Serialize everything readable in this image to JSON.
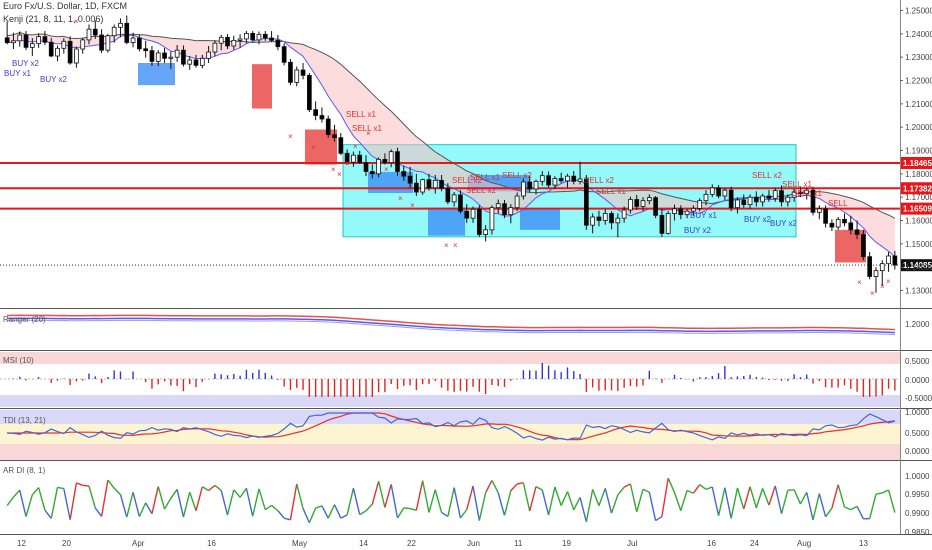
{
  "header": {
    "line1": "Euro Fx/U.S. Dollar, 1D, FXCM",
    "line2": "Kenji (21, 8, 11, 1, 0.006)"
  },
  "colors": {
    "bull": "#ffffff",
    "bear": "#000000",
    "ma": "#555555",
    "ma_fast": "#5a5aff",
    "hline": "#e8161a",
    "buy": "#3c3cd0",
    "sell": "#e03030",
    "range_box": "#6ff7f7",
    "blue_zone": "#3d8ff5",
    "red_zone": "#e84040",
    "band_fill": "#f9c0c0",
    "msi_pos": "#3434d8",
    "msi_neg": "#e82020",
    "tdi_line": "#4466dd",
    "tdi_red": "#e83030",
    "ardi_line": "#30aa30"
  },
  "chart_data": [
    {
      "type": "candlestick",
      "title": "Euro Fx/U.S. Dollar, 1D, FXCM",
      "y_ticks": [
        "1.25000",
        "1.24000",
        "1.23000",
        "1.22000",
        "1.21000",
        "1.20000",
        "1.19000",
        "1.18000",
        "1.17000",
        "1.16000",
        "1.15000",
        "1.14000",
        "1.13000"
      ],
      "ylim": [
        1.1225,
        1.2545
      ],
      "x_labels": [
        "12",
        "20",
        "Apr",
        "16",
        "May",
        "14",
        "22",
        "Jun",
        "11",
        "19",
        "Jul",
        "16",
        "24",
        "Aug",
        "13"
      ],
      "horizontal_lines": [
        {
          "value": 1.18465,
          "label": "1.18465"
        },
        {
          "value": 1.17382,
          "label": "1.17382"
        },
        {
          "value": 1.16509,
          "label": "1.16509"
        }
      ],
      "last_price": {
        "value": 1.14085,
        "label": "1.14085"
      },
      "signals": [
        {
          "text": "BUY x1",
          "kind": "buy"
        },
        {
          "text": "BUY x2",
          "kind": "buy"
        },
        {
          "text": "BUY x2",
          "kind": "buy"
        },
        {
          "text": "SELL x1",
          "kind": "sell"
        },
        {
          "text": "SELL x1",
          "kind": "sell"
        },
        {
          "text": "SELL x2",
          "kind": "sell"
        },
        {
          "text": "SELL x2",
          "kind": "sell"
        },
        {
          "text": "SELL x1",
          "kind": "sell"
        },
        {
          "text": "SELL x2",
          "kind": "sell"
        },
        {
          "text": "SELL x2",
          "kind": "sell"
        },
        {
          "text": "SELL x1",
          "kind": "sell"
        },
        {
          "text": "BUY x1",
          "kind": "buy"
        },
        {
          "text": "BUY x2",
          "kind": "buy"
        },
        {
          "text": "BUY x2",
          "kind": "buy"
        },
        {
          "text": "BUY x2",
          "kind": "buy"
        },
        {
          "text": "SELL x2",
          "kind": "sell"
        },
        {
          "text": "SELL x1",
          "kind": "sell"
        },
        {
          "text": "SELL x1",
          "kind": "sell"
        },
        {
          "text": "SELL",
          "kind": "sell"
        }
      ],
      "candles": [
        [
          1.2383,
          1.2452,
          1.2355,
          1.2362
        ],
        [
          1.2362,
          1.2405,
          1.2335,
          1.237
        ],
        [
          1.237,
          1.241,
          1.2345,
          1.2395
        ],
        [
          1.2395,
          1.2412,
          1.233,
          1.2342
        ],
        [
          1.2342,
          1.2382,
          1.2305,
          1.2358
        ],
        [
          1.2358,
          1.2402,
          1.234,
          1.2388
        ],
        [
          1.2388,
          1.2412,
          1.2352,
          1.2364
        ],
        [
          1.2364,
          1.2382,
          1.23,
          1.2305
        ],
        [
          1.2305,
          1.235,
          1.2283,
          1.2338
        ],
        [
          1.2338,
          1.2382,
          1.2315,
          1.2368
        ],
        [
          1.2368,
          1.239,
          1.2268,
          1.2275
        ],
        [
          1.2275,
          1.2345,
          1.2255,
          1.2335
        ],
        [
          1.2335,
          1.2383,
          1.2315,
          1.2374
        ],
        [
          1.2374,
          1.244,
          1.2355,
          1.242
        ],
        [
          1.242,
          1.2458,
          1.2378,
          1.2395
        ],
        [
          1.2395,
          1.242,
          1.2318,
          1.233
        ],
        [
          1.233,
          1.24,
          1.232,
          1.2392
        ],
        [
          1.2392,
          1.244,
          1.2362,
          1.2428
        ],
        [
          1.2428,
          1.2466,
          1.2385,
          1.2445
        ],
        [
          1.2445,
          1.2478,
          1.2355,
          1.2363
        ],
        [
          1.2363,
          1.2405,
          1.2342,
          1.2382
        ],
        [
          1.2382,
          1.2396,
          1.2325,
          1.2336
        ],
        [
          1.2336,
          1.237,
          1.2298,
          1.2328
        ],
        [
          1.2328,
          1.2348,
          1.2262,
          1.2282
        ],
        [
          1.2282,
          1.233,
          1.2262,
          1.2318
        ],
        [
          1.2318,
          1.234,
          1.2275,
          1.2295
        ],
        [
          1.2295,
          1.2325,
          1.225,
          1.23
        ],
        [
          1.23,
          1.2352,
          1.228,
          1.233
        ],
        [
          1.233,
          1.235,
          1.226,
          1.227
        ],
        [
          1.227,
          1.2305,
          1.2246,
          1.2288
        ],
        [
          1.2288,
          1.231,
          1.2255,
          1.2265
        ],
        [
          1.2265,
          1.231,
          1.2252,
          1.2295
        ],
        [
          1.2295,
          1.2348,
          1.2275,
          1.2322
        ],
        [
          1.2322,
          1.2372,
          1.2305,
          1.236
        ],
        [
          1.236,
          1.2396,
          1.233,
          1.2385
        ],
        [
          1.2385,
          1.2398,
          1.2335,
          1.2348
        ],
        [
          1.2348,
          1.2392,
          1.2332,
          1.2372
        ],
        [
          1.2372,
          1.2398,
          1.234,
          1.2378
        ],
        [
          1.2378,
          1.2412,
          1.236,
          1.2402
        ],
        [
          1.2402,
          1.2412,
          1.2368,
          1.2374
        ],
        [
          1.2374,
          1.241,
          1.2355,
          1.2398
        ],
        [
          1.2398,
          1.2412,
          1.237,
          1.2382
        ],
        [
          1.2382,
          1.2412,
          1.2365,
          1.2372
        ],
        [
          1.2372,
          1.2395,
          1.233,
          1.2345
        ],
        [
          1.2345,
          1.236,
          1.2265,
          1.2278
        ],
        [
          1.2278,
          1.2292,
          1.218,
          1.2192
        ],
        [
          1.2192,
          1.226,
          1.2175,
          1.2245
        ],
        [
          1.2245,
          1.2275,
          1.2205,
          1.2222
        ],
        [
          1.2222,
          1.2232,
          1.2065,
          1.2075
        ],
        [
          1.2075,
          1.211,
          1.203,
          1.205
        ],
        [
          1.205,
          1.2085,
          1.202,
          1.2035
        ],
        [
          1.2035,
          1.205,
          1.1955,
          1.1968
        ],
        [
          1.1968,
          1.201,
          1.1938,
          1.1955
        ],
        [
          1.1955,
          1.1975,
          1.188,
          1.1888
        ],
        [
          1.1888,
          1.1905,
          1.184,
          1.185
        ],
        [
          1.185,
          1.1895,
          1.183,
          1.188
        ],
        [
          1.188,
          1.1898,
          1.1842,
          1.1848
        ],
        [
          1.1848,
          1.188,
          1.179,
          1.181
        ],
        [
          1.181,
          1.184,
          1.178,
          1.18
        ],
        [
          1.18,
          1.187,
          1.1785,
          1.1862
        ],
        [
          1.1862,
          1.1888,
          1.184,
          1.1848
        ],
        [
          1.1848,
          1.1905,
          1.1828,
          1.1895
        ],
        [
          1.1895,
          1.1912,
          1.179,
          1.181
        ],
        [
          1.181,
          1.1835,
          1.177,
          1.179
        ],
        [
          1.179,
          1.183,
          1.174,
          1.176
        ],
        [
          1.176,
          1.18,
          1.1705,
          1.1722
        ],
        [
          1.1722,
          1.178,
          1.171,
          1.1775
        ],
        [
          1.1775,
          1.18,
          1.1728,
          1.174
        ],
        [
          1.174,
          1.1795,
          1.1715,
          1.1772
        ],
        [
          1.1772,
          1.1795,
          1.1725,
          1.1738
        ],
        [
          1.1738,
          1.176,
          1.167,
          1.168
        ],
        [
          1.168,
          1.1722,
          1.166,
          1.171
        ],
        [
          1.171,
          1.173,
          1.163,
          1.164
        ],
        [
          1.164,
          1.167,
          1.159,
          1.161
        ],
        [
          1.161,
          1.166,
          1.159,
          1.1648
        ],
        [
          1.1648,
          1.1665,
          1.153,
          1.154
        ],
        [
          1.154,
          1.158,
          1.151,
          1.156
        ],
        [
          1.156,
          1.1665,
          1.154,
          1.1655
        ],
        [
          1.1655,
          1.169,
          1.163,
          1.1672
        ],
        [
          1.1672,
          1.1688,
          1.161,
          1.1625
        ],
        [
          1.1625,
          1.167,
          1.1588,
          1.1655
        ],
        [
          1.1655,
          1.172,
          1.164,
          1.1705
        ],
        [
          1.1705,
          1.178,
          1.169,
          1.1765
        ],
        [
          1.1765,
          1.179,
          1.172,
          1.1735
        ],
        [
          1.1735,
          1.1775,
          1.1712,
          1.1768
        ],
        [
          1.1768,
          1.1812,
          1.175,
          1.1792
        ],
        [
          1.1792,
          1.181,
          1.1742,
          1.1752
        ],
        [
          1.1752,
          1.179,
          1.1735,
          1.178
        ],
        [
          1.178,
          1.1805,
          1.176,
          1.177
        ],
        [
          1.177,
          1.18,
          1.174,
          1.179
        ],
        [
          1.179,
          1.1812,
          1.1755,
          1.1768
        ],
        [
          1.1768,
          1.1852,
          1.1755,
          1.1778
        ],
        [
          1.1778,
          1.1795,
          1.156,
          1.158
        ],
        [
          1.158,
          1.163,
          1.1545,
          1.1615
        ],
        [
          1.1615,
          1.1642,
          1.1575,
          1.16
        ],
        [
          1.16,
          1.1648,
          1.1582,
          1.163
        ],
        [
          1.163,
          1.164,
          1.1562,
          1.159
        ],
        [
          1.159,
          1.163,
          1.1528,
          1.161
        ],
        [
          1.161,
          1.166,
          1.159,
          1.1645
        ],
        [
          1.1645,
          1.1702,
          1.163,
          1.169
        ],
        [
          1.169,
          1.171,
          1.1645,
          1.166
        ],
        [
          1.166,
          1.17,
          1.164,
          1.1685
        ],
        [
          1.1685,
          1.1712,
          1.167,
          1.1698
        ],
        [
          1.1698,
          1.1705,
          1.161,
          1.1622
        ],
        [
          1.1622,
          1.165,
          1.153,
          1.1545
        ],
        [
          1.1545,
          1.164,
          1.154,
          1.163
        ],
        [
          1.163,
          1.1668,
          1.16,
          1.165
        ],
        [
          1.165,
          1.1665,
          1.1605,
          1.1625
        ],
        [
          1.1625,
          1.165,
          1.161,
          1.164
        ],
        [
          1.164,
          1.1665,
          1.162,
          1.1652
        ],
        [
          1.1652,
          1.1695,
          1.164,
          1.1685
        ],
        [
          1.1685,
          1.173,
          1.1665,
          1.1712
        ],
        [
          1.1712,
          1.1755,
          1.17,
          1.174
        ],
        [
          1.174,
          1.1752,
          1.1695,
          1.1705
        ],
        [
          1.1705,
          1.174,
          1.1688,
          1.173
        ],
        [
          1.173,
          1.1745,
          1.164,
          1.1655
        ],
        [
          1.1655,
          1.17,
          1.163,
          1.1688
        ],
        [
          1.1688,
          1.1712,
          1.1655,
          1.1668
        ],
        [
          1.1668,
          1.1712,
          1.165,
          1.17
        ],
        [
          1.17,
          1.1725,
          1.166,
          1.168
        ],
        [
          1.168,
          1.1715,
          1.166,
          1.1705
        ],
        [
          1.1705,
          1.173,
          1.168,
          1.1695
        ],
        [
          1.1695,
          1.174,
          1.168,
          1.1728
        ],
        [
          1.1728,
          1.175,
          1.166,
          1.168
        ],
        [
          1.168,
          1.1712,
          1.166,
          1.17
        ],
        [
          1.17,
          1.1735,
          1.168,
          1.1722
        ],
        [
          1.1722,
          1.1745,
          1.17,
          1.1715
        ],
        [
          1.1715,
          1.174,
          1.169,
          1.173
        ],
        [
          1.173,
          1.1745,
          1.1622,
          1.1635
        ],
        [
          1.1635,
          1.1665,
          1.1605,
          1.165
        ],
        [
          1.165,
          1.1665,
          1.157,
          1.1588
        ],
        [
          1.1588,
          1.1605,
          1.1555,
          1.1572
        ],
        [
          1.1572,
          1.1615,
          1.156,
          1.1605
        ],
        [
          1.1605,
          1.163,
          1.1575,
          1.159
        ],
        [
          1.159,
          1.162,
          1.154,
          1.156
        ],
        [
          1.156,
          1.16,
          1.152,
          1.154
        ],
        [
          1.154,
          1.156,
          1.143,
          1.1445
        ],
        [
          1.1445,
          1.1465,
          1.1348,
          1.136
        ],
        [
          1.136,
          1.14,
          1.129,
          1.1385
        ],
        [
          1.1385,
          1.143,
          1.132,
          1.1415
        ],
        [
          1.1415,
          1.1465,
          1.138,
          1.1448
        ],
        [
          1.1448,
          1.147,
          1.139,
          1.1409
        ]
      ]
    },
    {
      "type": "line",
      "title": "Ranger (20)",
      "y_ticks": [
        "1.2000"
      ]
    },
    {
      "type": "bar",
      "title": "MSI (10)",
      "y_ticks": [
        "0.5000",
        "0.0000",
        "-0.5000"
      ]
    },
    {
      "type": "line",
      "title": "TDI (13, 21)",
      "y_ticks": [
        "1.0000",
        "0.5000",
        "0.0000"
      ]
    },
    {
      "type": "line",
      "title": "AR DI (8, 1)",
      "y_ticks": [
        "1.0000",
        "0.9950",
        "0.9900",
        "0.9850"
      ]
    }
  ]
}
